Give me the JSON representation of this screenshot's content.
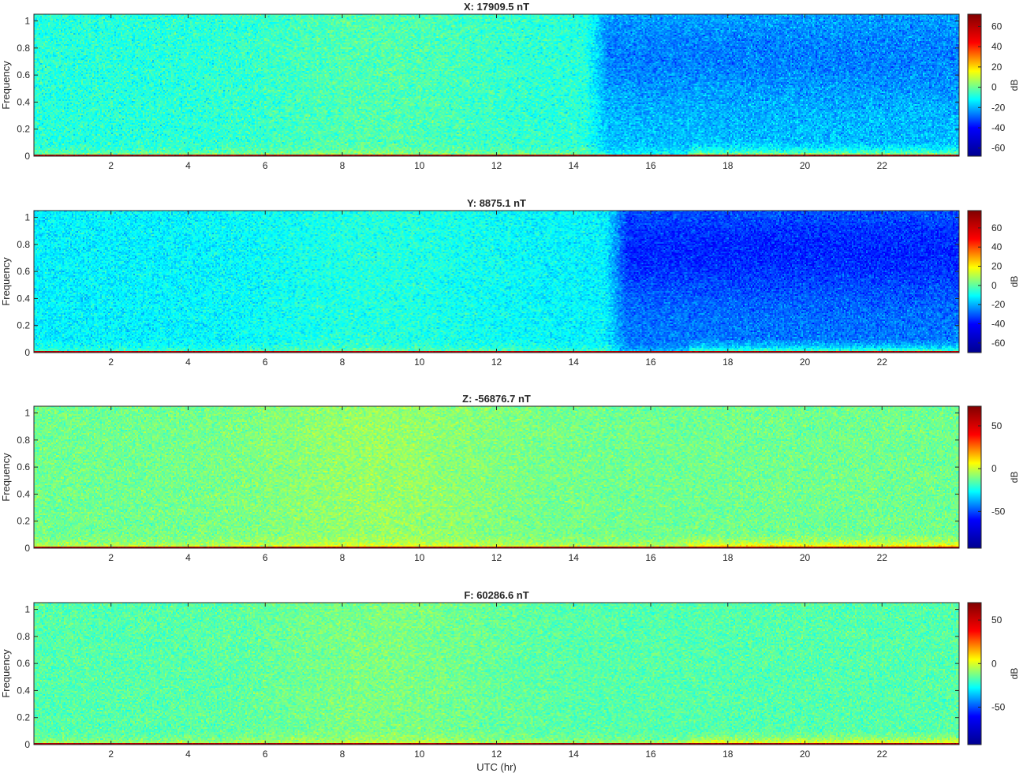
{
  "figure": {
    "xlabel": "UTC (hr)",
    "colormap": "jet",
    "colormap_stops": [
      "#00008f",
      "#0000ff",
      "#00ffff",
      "#ffff00",
      "#ff0000",
      "#800000"
    ]
  },
  "chart_data": [
    {
      "type": "heatmap",
      "title": "X: 17909.5 nT",
      "ylabel": "Frequency",
      "xlabel": "",
      "xlim": [
        0,
        24
      ],
      "ylim": [
        0,
        1.05
      ],
      "xticks": [
        2,
        4,
        6,
        8,
        10,
        12,
        14,
        16,
        18,
        20,
        22
      ],
      "yticks": [
        0,
        0.2,
        0.4,
        0.6,
        0.8,
        1
      ],
      "colorbar": {
        "label": "dB",
        "range": [
          -68,
          72
        ],
        "ticks": [
          -60,
          -40,
          -20,
          0,
          20,
          40,
          60
        ]
      },
      "features": {
        "base_db": -8,
        "low_freq_db": 22,
        "dc_line_db": 62,
        "late_dip_start_hr": 14.3,
        "late_dip_db": -18,
        "late_low_freq_boost_db": 18
      }
    },
    {
      "type": "heatmap",
      "title": "Y: 8875.1 nT",
      "ylabel": "Frequency",
      "xlabel": "",
      "xlim": [
        0,
        24
      ],
      "ylim": [
        0,
        1.05
      ],
      "xticks": [
        2,
        4,
        6,
        8,
        10,
        12,
        14,
        16,
        18,
        20,
        22
      ],
      "yticks": [
        0,
        0.2,
        0.4,
        0.6,
        0.8,
        1
      ],
      "colorbar": {
        "label": "dB",
        "range": [
          -70,
          78
        ],
        "ticks": [
          -60,
          -40,
          -20,
          0,
          20,
          40,
          60
        ]
      },
      "features": {
        "base_db": -12,
        "low_freq_db": 20,
        "dc_line_db": 66,
        "late_dip_start_hr": 14.8,
        "late_dip_db": -24,
        "late_low_freq_boost_db": 22
      }
    },
    {
      "type": "heatmap",
      "title": "Z: -56876.7 nT",
      "ylabel": "Frequency",
      "xlabel": "",
      "xlim": [
        0,
        24
      ],
      "ylim": [
        0,
        1.05
      ],
      "xticks": [
        2,
        4,
        6,
        8,
        10,
        12,
        14,
        16,
        18,
        20,
        22
      ],
      "yticks": [
        0,
        0.2,
        0.4,
        0.6,
        0.8,
        1
      ],
      "colorbar": {
        "label": "dB",
        "range": [
          -93,
          73
        ],
        "ticks": [
          -50,
          0,
          50
        ]
      },
      "features": {
        "base_db": -12,
        "low_freq_db": 30,
        "dc_line_db": 62,
        "late_dip_start_hr": 24,
        "late_dip_db": 0,
        "late_low_freq_boost_db": 14
      }
    },
    {
      "type": "heatmap",
      "title": "F: 60286.6 nT",
      "ylabel": "Frequency",
      "xlabel": "UTC (hr)",
      "xlim": [
        0,
        24
      ],
      "ylim": [
        0,
        1.05
      ],
      "xticks": [
        2,
        4,
        6,
        8,
        10,
        12,
        14,
        16,
        18,
        20,
        22
      ],
      "yticks": [
        0,
        0.2,
        0.4,
        0.6,
        0.8,
        1
      ],
      "colorbar": {
        "label": "dB",
        "range": [
          -93,
          70
        ],
        "ticks": [
          -50,
          0,
          50
        ]
      },
      "features": {
        "base_db": -17,
        "low_freq_db": 26,
        "dc_line_db": 60,
        "late_dip_start_hr": 24,
        "late_dip_db": 0,
        "late_low_freq_boost_db": 14
      }
    }
  ]
}
